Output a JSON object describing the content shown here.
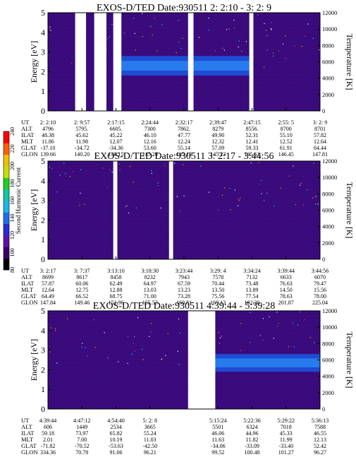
{
  "chart_data": {
    "type": "heatmap",
    "colorbar": {
      "label": "Second Harmonic Current",
      "ticks": [
        "80",
        "100",
        "120",
        "140",
        "160",
        "180",
        "200",
        "220",
        "240"
      ],
      "colors": [
        "#000000",
        "#3a0066",
        "#5a12a8",
        "#2a2ad8",
        "#1f6ef0",
        "#18b8e8",
        "#10c8a0",
        "#20d020",
        "#c8e000",
        "#f0c000",
        "#ff6000",
        "#ff0000"
      ]
    },
    "panels": [
      {
        "title": "EXOS-D/TED   Date:930511  2: 2:10 - 3: 2: 9",
        "ylabel": "Energy [eV]",
        "y2label": "Temperature [K]",
        "ylim": [
          0,
          5
        ],
        "y2lim": [
          0,
          12000
        ],
        "yticks": [
          "0",
          "1",
          "2",
          "3",
          "4",
          "5"
        ],
        "y2ticks": [
          "0",
          "2000",
          "4000",
          "6000",
          "8000",
          "10000",
          "12000"
        ],
        "gaps": [
          [
            0.1,
            0.14
          ],
          [
            0.17,
            0.215
          ],
          [
            0.24,
            0.27
          ],
          [
            0.515,
            0.535
          ],
          [
            0.74,
            0.755
          ]
        ],
        "band": {
          "low": 1.8,
          "high": 2.8,
          "coverage": [
            [
              0.27,
              0.74
            ]
          ]
        },
        "orbit_labels": [
          "UT",
          "ALT",
          "ILAT",
          "MLT",
          "GLAT",
          "GLON"
        ],
        "orbit": [
          [
            "2: 2:10",
            "4796",
            "48.38",
            "11.86",
            "-37.10",
            "139.66"
          ],
          [
            "2: 9:57",
            "5795.",
            "45.62",
            "11.98",
            "-34.72",
            "140.20"
          ],
          [
            "2:17:15",
            "6605.",
            "45.22",
            "12.07",
            "-34.36",
            "140.15"
          ],
          [
            "2:24:44",
            "7300",
            "46.10",
            "12.16",
            "53.60",
            "145.20"
          ],
          [
            "2:32:17",
            "7862.",
            "47.77",
            "12.24",
            "55.14",
            "145.13"
          ],
          [
            "2:39:47",
            "8279",
            "49.90",
            "12.32",
            "57.09",
            "145.23"
          ],
          [
            "2:47:15",
            "8556.",
            "52.31",
            "12.41",
            "59.33",
            "145.61"
          ],
          [
            "2:55: 5",
            "8700",
            "55.10",
            "12.52",
            "61.91",
            "146.45"
          ],
          [
            "3: 2: 9",
            "8701",
            "57.82",
            "12.64",
            "64.44",
            "147.81"
          ]
        ]
      },
      {
        "title": "EXOS-D/TED   Date:930511  3: 2:17 - 3:44:56",
        "ylabel": "Energy [eV]",
        "y2label": "Temperature [K]",
        "ylim": [
          0,
          5
        ],
        "y2lim": [
          0,
          12000
        ],
        "yticks": [
          "0",
          "1",
          "2",
          "3",
          "4",
          "5"
        ],
        "y2ticks": [
          "0",
          "2000",
          "4000",
          "6000",
          "8000",
          "10000",
          "12000"
        ],
        "gaps": [
          [
            0.24,
            0.255
          ],
          [
            0.445,
            0.46
          ]
        ],
        "band": {
          "low": 0,
          "high": 0,
          "coverage": []
        },
        "orbit_labels": [
          "UT",
          "ALT",
          "ILAT",
          "MLT",
          "GLAT",
          "GLON"
        ],
        "orbit": [
          [
            "3: 2:17",
            "8699",
            "57.87",
            "12.64",
            "64.49",
            "147.84"
          ],
          [
            "3: 7:37",
            "8617",
            "60.06",
            "12.75",
            "66.52",
            "149.46"
          ],
          [
            "3:13:10",
            "8458",
            "62.49",
            "12.88",
            "68.75",
            "151.96"
          ],
          [
            "3:18:30",
            "8232",
            "64.97",
            "13.03",
            "71.00",
            "155.53"
          ],
          [
            "3:23:44",
            "7943",
            "67.59",
            "13.23",
            "73.28",
            "160.81"
          ],
          [
            "3:29: 4",
            "7578",
            "70.44",
            "13.50",
            "75.56",
            "169.13"
          ],
          [
            "3:34:24",
            "7132",
            "73.48",
            "13.89",
            "77.54",
            "182.26"
          ],
          [
            "3:39:44",
            "6633",
            "76.63",
            "14.50",
            "78.63",
            "201.87"
          ],
          [
            "3:44:56",
            "6070",
            "79.47",
            "15.56",
            "78.00",
            "225.04"
          ]
        ]
      },
      {
        "title": "EXOS-D/TED   Date:930511  4:39:44 - 5:39:28",
        "ylabel": "Energy [eV]",
        "y2label": "Temperature [K]",
        "ylim": [
          0,
          5
        ],
        "y2lim": [
          0,
          12000
        ],
        "yticks": [
          "0",
          "1",
          "2",
          "3",
          "4",
          "5"
        ],
        "y2ticks": [
          "0",
          "2000",
          "4000",
          "6000",
          "8000",
          "10000",
          "12000"
        ],
        "gaps": [
          [
            0.515,
            0.615
          ]
        ],
        "band": {
          "low": 1.9,
          "high": 2.8,
          "coverage": [
            [
              0.615,
              1.0
            ]
          ]
        },
        "orbit_labels": [
          "UT",
          "ALT",
          "ILAT",
          "MLT",
          "GLAT",
          "GLON"
        ],
        "orbit": [
          [
            "4:39:44",
            "606",
            "59.18",
            "2.01",
            "-71.82",
            "334.36"
          ],
          [
            "4:47:12",
            "1449",
            "73.97",
            "7.00",
            "-70.52",
            "70.78"
          ],
          [
            "4:54:40",
            "2534",
            "65.82",
            "10.19",
            "-53.63",
            "91.06"
          ],
          [
            "5: 2: 8",
            "3665",
            "55.24",
            "11.03",
            "-42.50",
            "96.21"
          ],
          [
            "",
            "",
            "",
            "",
            "",
            ""
          ],
          [
            "5:15:24",
            "5501",
            "46.06",
            "11.63",
            "-34.06",
            "99.52"
          ],
          [
            "5:22:36",
            "6324",
            "44.96",
            "11.82",
            "-33.09",
            "100.48"
          ],
          [
            "5:29:22",
            "7018",
            "45.33",
            "11.99",
            "-33.40",
            "101.27"
          ],
          [
            "5:36:13",
            "7588",
            "46.55",
            "12.13",
            "52.42",
            "96.27"
          ]
        ]
      }
    ]
  }
}
